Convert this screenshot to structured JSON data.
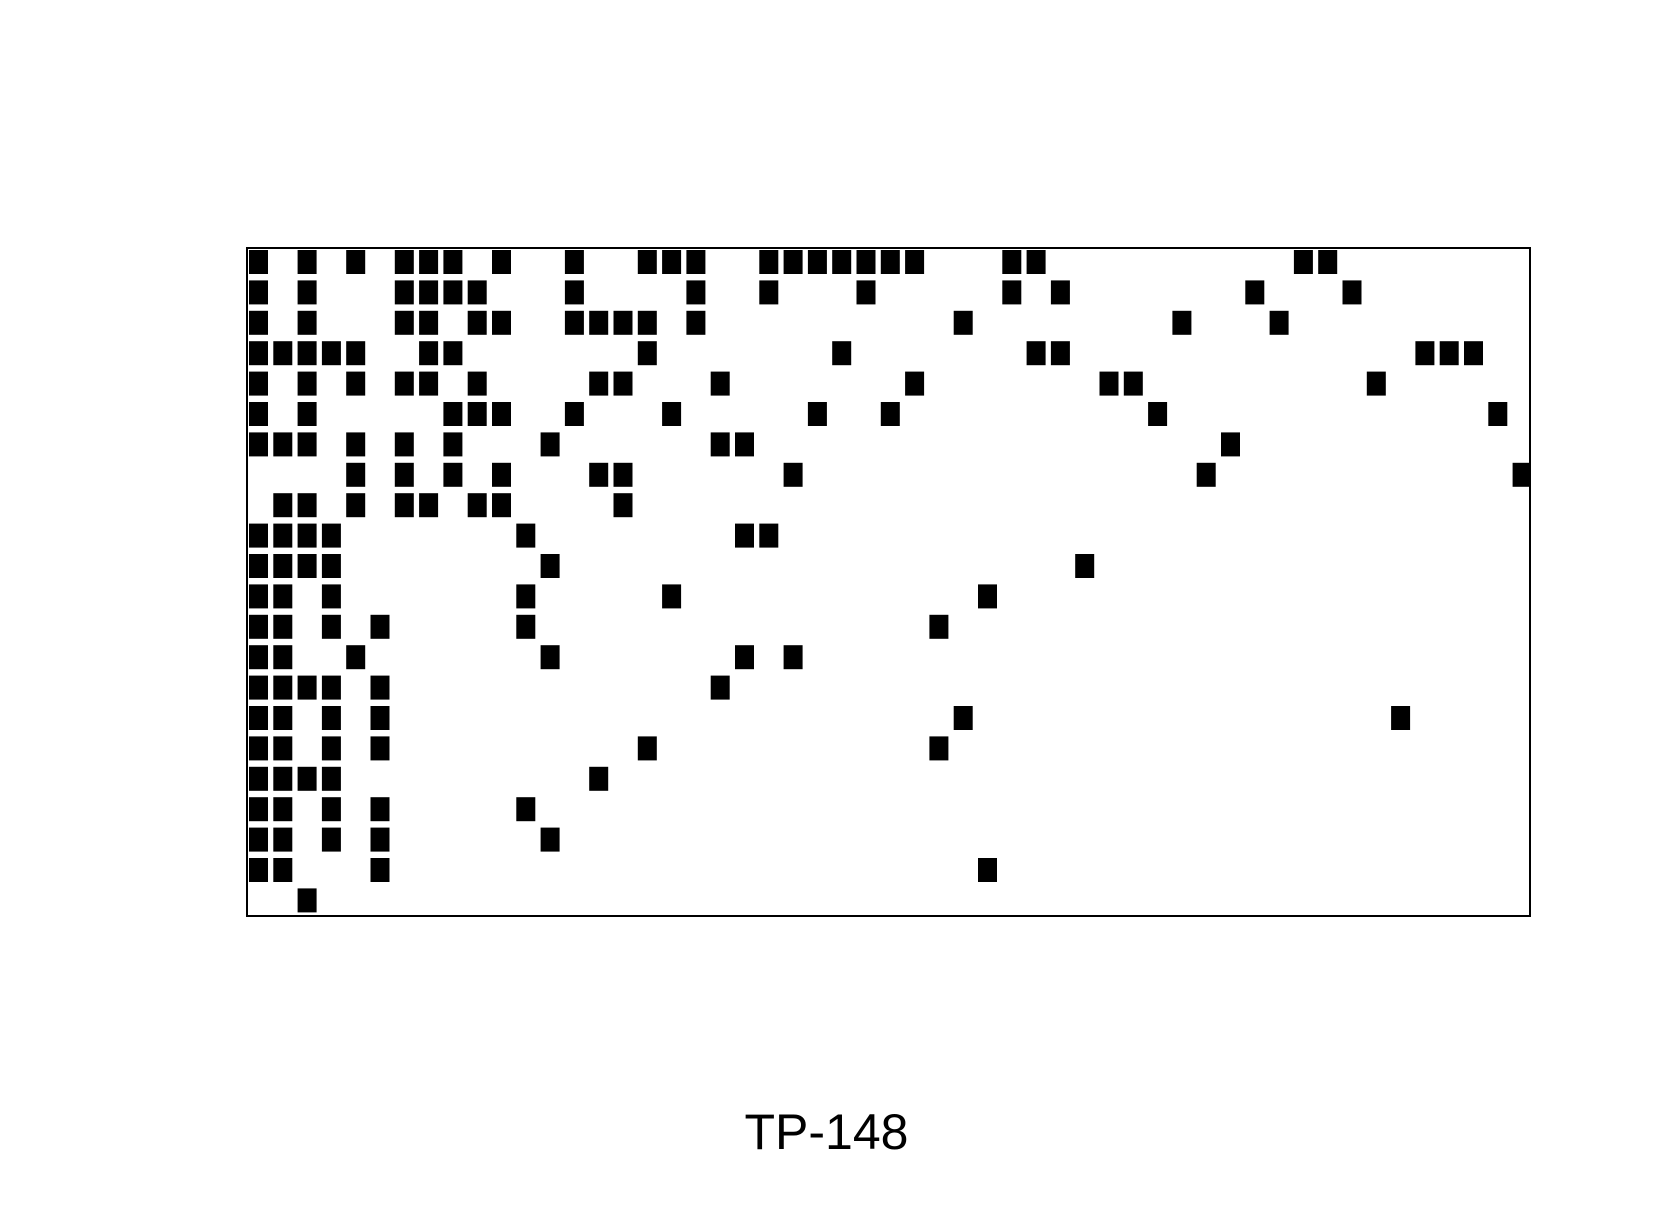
{
  "label": "TP-148",
  "colors": {
    "cell": "#000000",
    "frame": "#000000",
    "background": "#ffffff"
  },
  "matrix": {
    "rows": 22,
    "cols": 53,
    "filled": [
      [
        0,
        2,
        4,
        6,
        7,
        8,
        10,
        13,
        16,
        17,
        18,
        21,
        22,
        23,
        24,
        25,
        26,
        27,
        31,
        32,
        43,
        44
      ],
      [
        0,
        2,
        6,
        7,
        8,
        9,
        13,
        18,
        21,
        25,
        31,
        33,
        41,
        45
      ],
      [
        0,
        2,
        6,
        7,
        9,
        10,
        13,
        14,
        15,
        16,
        18,
        29,
        38,
        42
      ],
      [
        0,
        1,
        2,
        3,
        4,
        7,
        8,
        16,
        24,
        32,
        33,
        48,
        49,
        50
      ],
      [
        0,
        2,
        4,
        6,
        7,
        9,
        14,
        15,
        19,
        27,
        35,
        36,
        46
      ],
      [
        0,
        2,
        8,
        9,
        10,
        13,
        17,
        23,
        26,
        37,
        51
      ],
      [
        0,
        1,
        2,
        4,
        6,
        8,
        12,
        19,
        20,
        40
      ],
      [
        4,
        6,
        8,
        10,
        14,
        15,
        22,
        39,
        52
      ],
      [
        1,
        2,
        4,
        6,
        7,
        9,
        10,
        15
      ],
      [
        0,
        1,
        2,
        3,
        11,
        20,
        21
      ],
      [
        0,
        1,
        2,
        3,
        12,
        34
      ],
      [
        0,
        1,
        3,
        11,
        17,
        30
      ],
      [
        0,
        1,
        3,
        5,
        11,
        28
      ],
      [
        0,
        1,
        4,
        12,
        20,
        22
      ],
      [
        0,
        1,
        2,
        3,
        5,
        19
      ],
      [
        0,
        1,
        3,
        5,
        29,
        47
      ],
      [
        0,
        1,
        3,
        5,
        16,
        28
      ],
      [
        0,
        1,
        2,
        3,
        14
      ],
      [
        0,
        1,
        3,
        5,
        11
      ],
      [
        0,
        1,
        3,
        5,
        12
      ],
      [
        0,
        1,
        5,
        30
      ],
      [
        2
      ]
    ]
  }
}
